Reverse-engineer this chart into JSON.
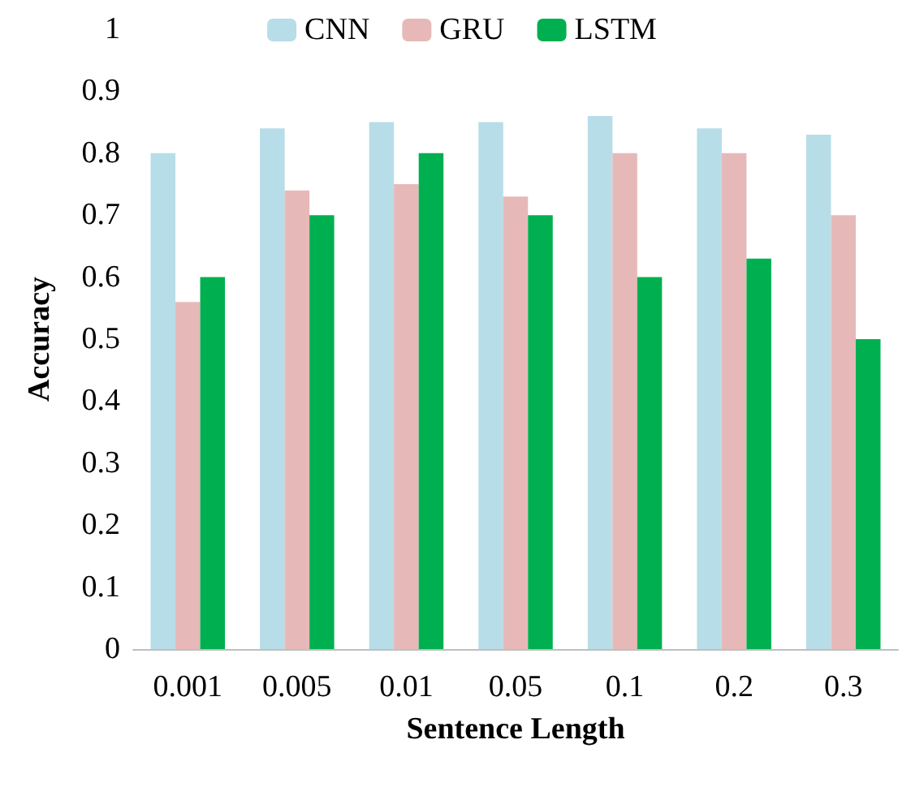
{
  "chart_data": {
    "type": "bar",
    "xlabel": "Sentence Length",
    "ylabel": "Accuracy",
    "categories": [
      "0.001",
      "0.005",
      "0.01",
      "0.05",
      "0.1",
      "0.2",
      "0.3"
    ],
    "series": [
      {
        "name": "CNN",
        "color": "#b7dde8",
        "values": [
          0.8,
          0.84,
          0.85,
          0.85,
          0.86,
          0.84,
          0.83
        ]
      },
      {
        "name": "GRU",
        "color": "#e6b9b8",
        "values": [
          0.56,
          0.74,
          0.75,
          0.73,
          0.8,
          0.8,
          0.7
        ]
      },
      {
        "name": "LSTM",
        "color": "#00b050",
        "values": [
          0.6,
          0.7,
          0.8,
          0.7,
          0.6,
          0.63,
          0.5
        ]
      }
    ],
    "ylim": [
      0,
      1
    ],
    "yticks": [
      0,
      0.1,
      0.2,
      0.3,
      0.4,
      0.5,
      0.6,
      0.7,
      0.8,
      0.9,
      1
    ],
    "grid": false,
    "legend": "top"
  }
}
